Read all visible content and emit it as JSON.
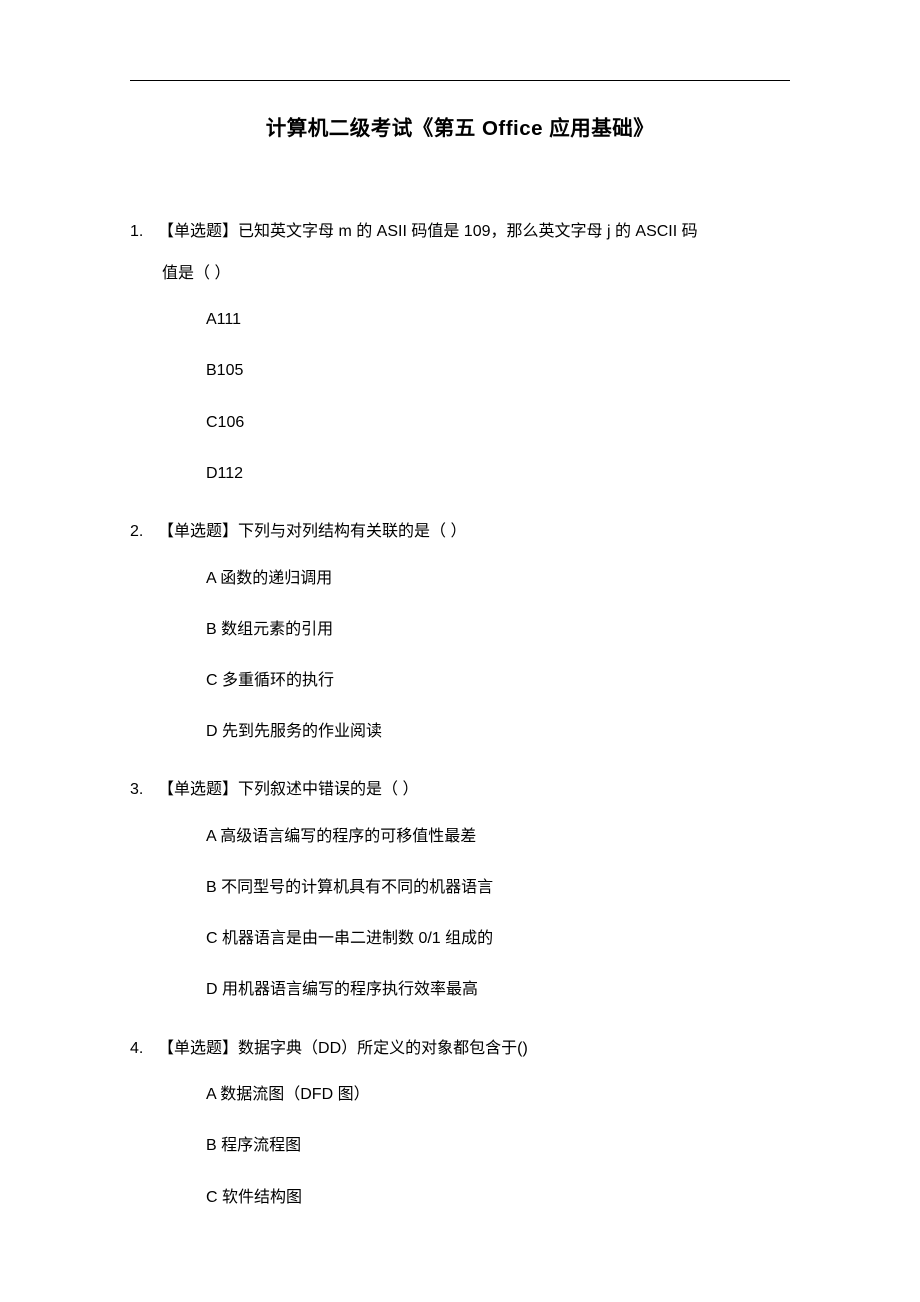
{
  "document": {
    "title": "计算机二级考试《第五 Office 应用基础》",
    "text_color": "#000000",
    "background_color": "#ffffff",
    "title_fontsize": 20.5,
    "body_fontsize": 16,
    "questions": [
      {
        "number": "1.",
        "type_label": "【单选题】",
        "text_line1": "已知英文字母 m 的 ASII 码值是 109，那么英文字母 j 的 ASCII 码",
        "text_line2": "值是（ ）",
        "options": [
          "A111",
          "B105",
          "C106",
          "D112"
        ]
      },
      {
        "number": "2.",
        "type_label": "【单选题】",
        "text_line1": "下列与对列结构有关联的是（ ）",
        "text_line2": "",
        "options": [
          "A 函数的递归调用",
          "B 数组元素的引用",
          "C 多重循环的执行",
          "D 先到先服务的作业阅读"
        ]
      },
      {
        "number": "3.",
        "type_label": "【单选题】",
        "text_line1": "下列叙述中错误的是（ ）",
        "text_line2": "",
        "options": [
          "A 高级语言编写的程序的可移值性最差",
          "B 不同型号的计算机具有不同的机器语言",
          "C 机器语言是由一串二进制数 0/1 组成的",
          "D 用机器语言编写的程序执行效率最高"
        ]
      },
      {
        "number": "4.",
        "type_label": "【单选题】",
        "text_line1": "数据字典（DD）所定义的对象都包含于()",
        "text_line2": "",
        "options": [
          "A 数据流图（DFD 图）",
          "B 程序流程图",
          "C 软件结构图"
        ]
      }
    ]
  }
}
